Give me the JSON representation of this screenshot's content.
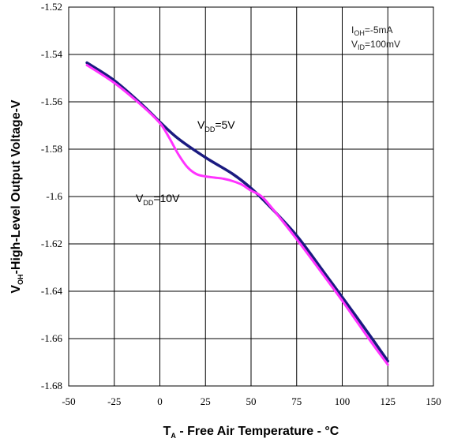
{
  "chart_data": {
    "type": "line",
    "title": "",
    "xlabel": {
      "main": "T",
      "sub": "A",
      "rest": " - Free Air Temperature - °C"
    },
    "ylabel": {
      "main": "V",
      "sub": "OH",
      "rest": "-High-Level Output Voltage-V"
    },
    "xlim": [
      -50,
      150
    ],
    "ylim": [
      -1.68,
      -1.52
    ],
    "xticks": [
      -50,
      -25,
      0,
      25,
      50,
      75,
      100,
      125,
      150
    ],
    "xtick_labels": [
      "-50",
      "-25",
      "0",
      "25",
      "50",
      "75",
      "100",
      "125",
      "150"
    ],
    "yticks": [
      -1.52,
      -1.54,
      -1.56,
      -1.58,
      -1.6,
      -1.62,
      -1.64,
      -1.66,
      -1.68
    ],
    "ytick_labels": [
      "-1.52",
      "-1.54",
      "-1.56",
      "-1.58",
      "-1.6",
      "-1.62",
      "-1.64",
      "-1.66",
      "-1.68"
    ],
    "grid": true,
    "conditions": [
      {
        "main": "I",
        "sub": "OH",
        "rest": "=-5mA"
      },
      {
        "main": "V",
        "sub": "ID",
        "rest": "=100mV"
      }
    ],
    "series": [
      {
        "label_main": "V",
        "label_sub": "DD",
        "label_rest": "=5V",
        "color": "#1a1a80",
        "x": [
          -40,
          -25,
          -10,
          0,
          10,
          25,
          40,
          50,
          60,
          75,
          90,
          100,
          115,
          125
        ],
        "y": [
          -1.5435,
          -1.551,
          -1.561,
          -1.5685,
          -1.5755,
          -1.5835,
          -1.5905,
          -1.5965,
          -1.604,
          -1.6165,
          -1.632,
          -1.6425,
          -1.6585,
          -1.6695
        ]
      },
      {
        "label_main": "V",
        "label_sub": "DD",
        "label_rest": "=10V",
        "color": "#ff33ff",
        "x": [
          -40,
          -25,
          -10,
          0,
          5,
          10,
          15,
          20,
          25,
          30,
          35,
          40,
          45,
          50,
          55,
          60,
          75,
          90,
          100,
          115,
          125
        ],
        "y": [
          -1.5445,
          -1.552,
          -1.5615,
          -1.569,
          -1.575,
          -1.582,
          -1.5875,
          -1.5905,
          -1.5915,
          -1.592,
          -1.5925,
          -1.5935,
          -1.595,
          -1.5975,
          -1.5995,
          -1.6035,
          -1.618,
          -1.6335,
          -1.644,
          -1.6605,
          -1.671
        ]
      }
    ]
  }
}
